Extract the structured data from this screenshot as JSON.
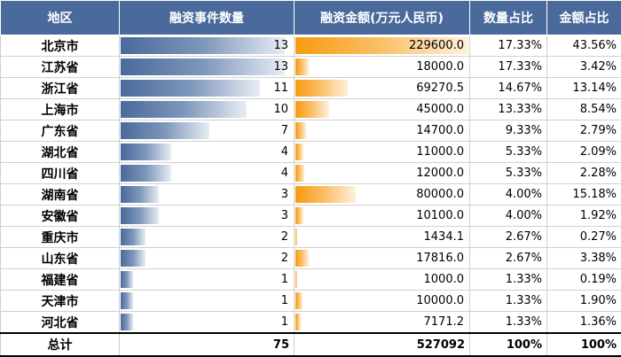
{
  "headers": [
    "地区",
    "融资事件数量",
    "融资金额(万元人民币)",
    "数量占比",
    "金额占比"
  ],
  "colors": {
    "header_bg": "#4a6a9b",
    "count_bar": "#4a6a9b",
    "amount_bar": "#f79a10"
  },
  "rows": [
    {
      "region": "北京市",
      "count": 13,
      "amount": "229600.0",
      "amount_value": 229600.0,
      "count_pct": "17.33%",
      "amount_pct": "43.56%"
    },
    {
      "region": "江苏省",
      "count": 13,
      "amount": "18000.0",
      "amount_value": 18000.0,
      "count_pct": "17.33%",
      "amount_pct": "3.42%"
    },
    {
      "region": "浙江省",
      "count": 11,
      "amount": "69270.5",
      "amount_value": 69270.5,
      "count_pct": "14.67%",
      "amount_pct": "13.14%"
    },
    {
      "region": "上海市",
      "count": 10,
      "amount": "45000.0",
      "amount_value": 45000.0,
      "count_pct": "13.33%",
      "amount_pct": "8.54%"
    },
    {
      "region": "广东省",
      "count": 7,
      "amount": "14700.0",
      "amount_value": 14700.0,
      "count_pct": "9.33%",
      "amount_pct": "2.79%"
    },
    {
      "region": "湖北省",
      "count": 4,
      "amount": "11000.0",
      "amount_value": 11000.0,
      "count_pct": "5.33%",
      "amount_pct": "2.09%"
    },
    {
      "region": "四川省",
      "count": 4,
      "amount": "12000.0",
      "amount_value": 12000.0,
      "count_pct": "5.33%",
      "amount_pct": "2.28%"
    },
    {
      "region": "湖南省",
      "count": 3,
      "amount": "80000.0",
      "amount_value": 80000.0,
      "count_pct": "4.00%",
      "amount_pct": "15.18%"
    },
    {
      "region": "安徽省",
      "count": 3,
      "amount": "10100.0",
      "amount_value": 10100.0,
      "count_pct": "4.00%",
      "amount_pct": "1.92%"
    },
    {
      "region": "重庆市",
      "count": 2,
      "amount": "1434.1",
      "amount_value": 1434.1,
      "count_pct": "2.67%",
      "amount_pct": "0.27%"
    },
    {
      "region": "山东省",
      "count": 2,
      "amount": "17816.0",
      "amount_value": 17816.0,
      "count_pct": "2.67%",
      "amount_pct": "3.38%"
    },
    {
      "region": "福建省",
      "count": 1,
      "amount": "1000.0",
      "amount_value": 1000.0,
      "count_pct": "1.33%",
      "amount_pct": "0.19%"
    },
    {
      "region": "天津市",
      "count": 1,
      "amount": "10000.0",
      "amount_value": 10000.0,
      "count_pct": "1.33%",
      "amount_pct": "1.90%"
    },
    {
      "region": "河北省",
      "count": 1,
      "amount": "7171.2",
      "amount_value": 7171.2,
      "count_pct": "1.33%",
      "amount_pct": "1.36%"
    }
  ],
  "total": {
    "label": "总计",
    "count": "75",
    "amount": "527092",
    "count_pct": "100%",
    "amount_pct": "100%"
  }
}
